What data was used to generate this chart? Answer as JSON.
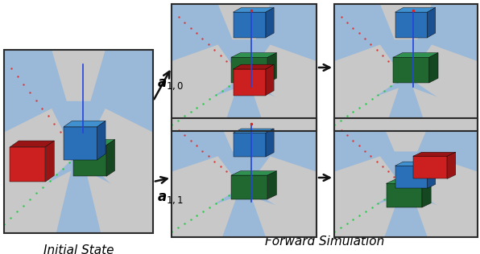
{
  "title": "Forward Simulation",
  "initial_label": "Initial State",
  "action_labels": [
    "$\\boldsymbol{a}_{1,0}$",
    "$\\boldsymbol{a}_{1,1}$"
  ],
  "bg_color": "#ffffff",
  "box_edge_color": "#2a2a2a",
  "blue_bg": "#9ab8d8",
  "gray_tile": "#c8c8c8",
  "red_block": "#cc2020",
  "red_block_dark": "#991515",
  "blue_block": "#2a70b8",
  "blue_block_dark": "#1a5090",
  "blue_block_light": "#4090d0",
  "green_block": "#206830",
  "green_block_dark": "#154820",
  "green_block_light": "#309050",
  "pole_color": "#2244dd",
  "red_dot_color": "#dd2222",
  "green_dot_color": "#22cc44",
  "arrow_color": "#111111",
  "title_fontsize": 11,
  "label_fontsize": 11,
  "action_fontsize": 12
}
